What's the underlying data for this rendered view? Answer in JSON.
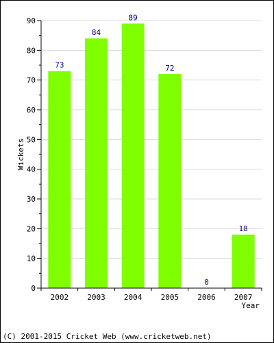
{
  "chart_data": {
    "type": "bar",
    "categories": [
      "2002",
      "2003",
      "2004",
      "2005",
      "2006",
      "2007"
    ],
    "values": [
      73,
      84,
      89,
      72,
      0,
      18
    ],
    "data_labels": [
      "73",
      "84",
      "89",
      "72",
      "0",
      "18"
    ],
    "xlabel": "Year",
    "ylabel": "Wickets",
    "ylim": [
      0,
      90
    ],
    "yticks": [
      0,
      10,
      20,
      30,
      40,
      50,
      60,
      70,
      80,
      90
    ],
    "grid": true,
    "colors": {
      "bar": "#7fff00",
      "data_label": "#000080",
      "grid": "#d9d9d9",
      "axis": "#000000"
    }
  },
  "footer": {
    "copyright": "(C) 2001-2015 Cricket Web (www.cricketweb.net)"
  }
}
